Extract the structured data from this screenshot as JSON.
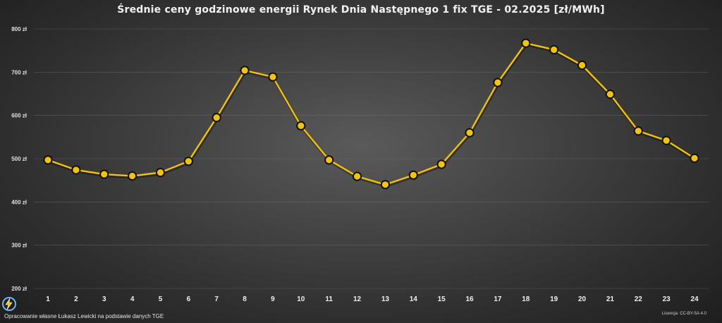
{
  "chart_data": {
    "type": "line",
    "title": "Średnie ceny godzinowe energii Rynek Dnia Następnego 1 fix TGE - 02.2025 [zł/MWh]",
    "xlabel": "",
    "ylabel": "",
    "x": [
      "1",
      "2",
      "3",
      "4",
      "5",
      "6",
      "7",
      "8",
      "9",
      "10",
      "11",
      "12",
      "13",
      "14",
      "15",
      "16",
      "17",
      "18",
      "19",
      "20",
      "21",
      "22",
      "23",
      "24"
    ],
    "series": [
      {
        "values": [
          497,
          474,
          464,
          460,
          468,
          494,
          595,
          704,
          689,
          576,
          497,
          459,
          440,
          462,
          487,
          560,
          676,
          767,
          752,
          716,
          649,
          564,
          542,
          501
        ]
      }
    ],
    "ylim": [
      200,
      800
    ],
    "yticks": [
      200,
      300,
      400,
      500,
      600,
      700,
      800
    ],
    "ytick_labels": [
      "200 zł",
      "300 zł",
      "400 zł",
      "500 zł",
      "600 zł",
      "700 zł",
      "800 zł"
    ],
    "grid": true,
    "legend": "none",
    "line_color": "#f5c400",
    "marker_fill": "#f5c400",
    "marker_stroke": "#111111"
  },
  "footer": {
    "source": "Opracowanie własne Łukasz Lewicki na podstawie danych TGE",
    "license": "Licencja: CC-BY-SA 4.0"
  },
  "logo": {
    "icon": "lightning-bolt-icon",
    "accent": "#f5c400",
    "ring": "#6fb7e8"
  }
}
